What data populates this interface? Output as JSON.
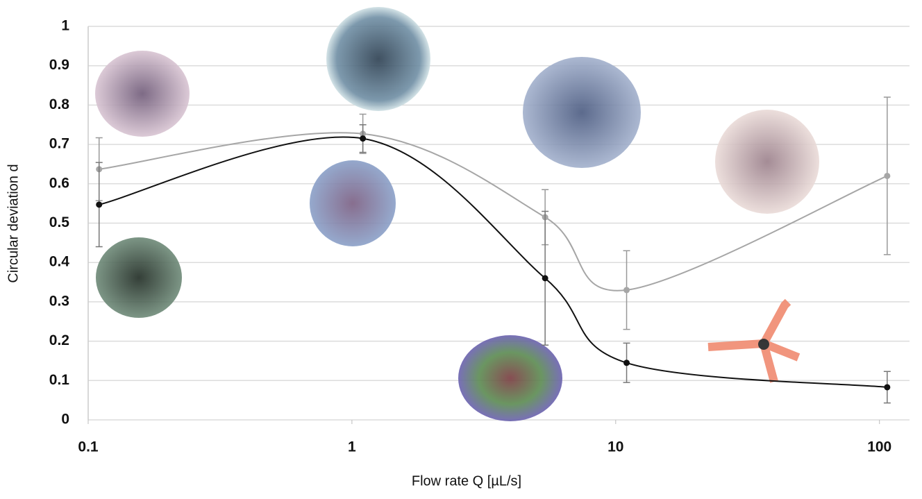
{
  "chart_data": {
    "type": "line",
    "log_x": true,
    "x_label": "Flow rate Q [µL/s]",
    "y_label": "Circular deviation d",
    "x": [
      0.11,
      1.1,
      5.4,
      11,
      107
    ],
    "series": [
      {
        "color": "#a6a6a6",
        "values": [
          0.637,
          0.727,
          0.515,
          0.33,
          0.62
        ],
        "errors": [
          0.08,
          0.05,
          0.07,
          0.1,
          0.2
        ]
      },
      {
        "color": "#111111",
        "values": [
          0.547,
          0.715,
          0.36,
          0.145,
          0.083
        ],
        "errors": [
          0.107,
          0.035,
          0.17,
          0.05,
          0.04
        ]
      }
    ],
    "xlim": [
      0.1,
      130
    ],
    "xticks": [
      0.1,
      1,
      10,
      100
    ],
    "ylim": [
      0,
      1
    ],
    "yticks": [
      0,
      0.1,
      0.2,
      0.3,
      0.4,
      0.5,
      0.6,
      0.7,
      0.8,
      0.9,
      1
    ],
    "grid": true
  }
}
